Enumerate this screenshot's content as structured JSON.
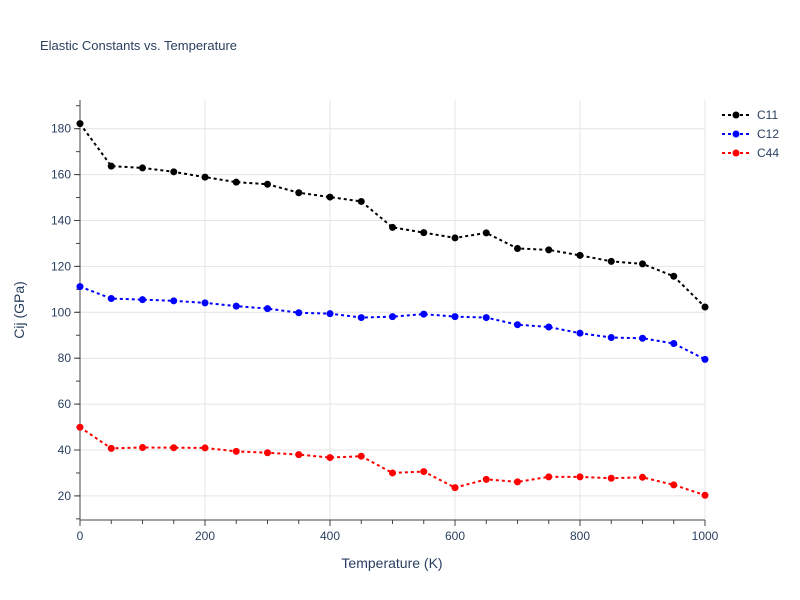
{
  "chart_data": {
    "type": "line",
    "title": "Elastic Constants vs. Temperature",
    "xlabel": "Temperature (K)",
    "ylabel": "Cij (GPa)",
    "xlim": [
      0,
      1000
    ],
    "ylim": [
      9.5,
      192.5
    ],
    "xticks": [
      0,
      200,
      400,
      600,
      800,
      1000
    ],
    "yticks": [
      20,
      40,
      60,
      80,
      100,
      120,
      140,
      160,
      180
    ],
    "grid": true,
    "legend_position": "top-right",
    "x": [
      0,
      50,
      100,
      150,
      200,
      250,
      300,
      350,
      400,
      450,
      500,
      550,
      600,
      650,
      700,
      750,
      800,
      850,
      900,
      950,
      1000
    ],
    "series": [
      {
        "name": "C11",
        "color": "#000000",
        "line_style": "dotted",
        "values": [
          182.2,
          163.7,
          162.9,
          161.2,
          158.9,
          156.7,
          155.8,
          152.1,
          150.2,
          148.3,
          137.0,
          134.7,
          132.4,
          134.6,
          127.8,
          127.2,
          124.8,
          122.2,
          121.1,
          115.7,
          102.3
        ]
      },
      {
        "name": "C12",
        "color": "#0000ff",
        "line_style": "dotted",
        "values": [
          111.2,
          106.0,
          105.5,
          105.0,
          104.1,
          102.7,
          101.6,
          99.8,
          99.4,
          97.7,
          98.1,
          99.2,
          98.1,
          97.7,
          94.6,
          93.6,
          90.9,
          89.0,
          88.7,
          86.4,
          79.5
        ]
      },
      {
        "name": "C44",
        "color": "#ff0000",
        "line_style": "dotted",
        "values": [
          49.9,
          40.7,
          41.1,
          41.0,
          40.9,
          39.4,
          38.8,
          38.0,
          36.7,
          37.3,
          30.0,
          30.6,
          23.6,
          27.2,
          26.1,
          28.3,
          28.3,
          27.7,
          28.1,
          24.8,
          20.3
        ]
      }
    ]
  }
}
